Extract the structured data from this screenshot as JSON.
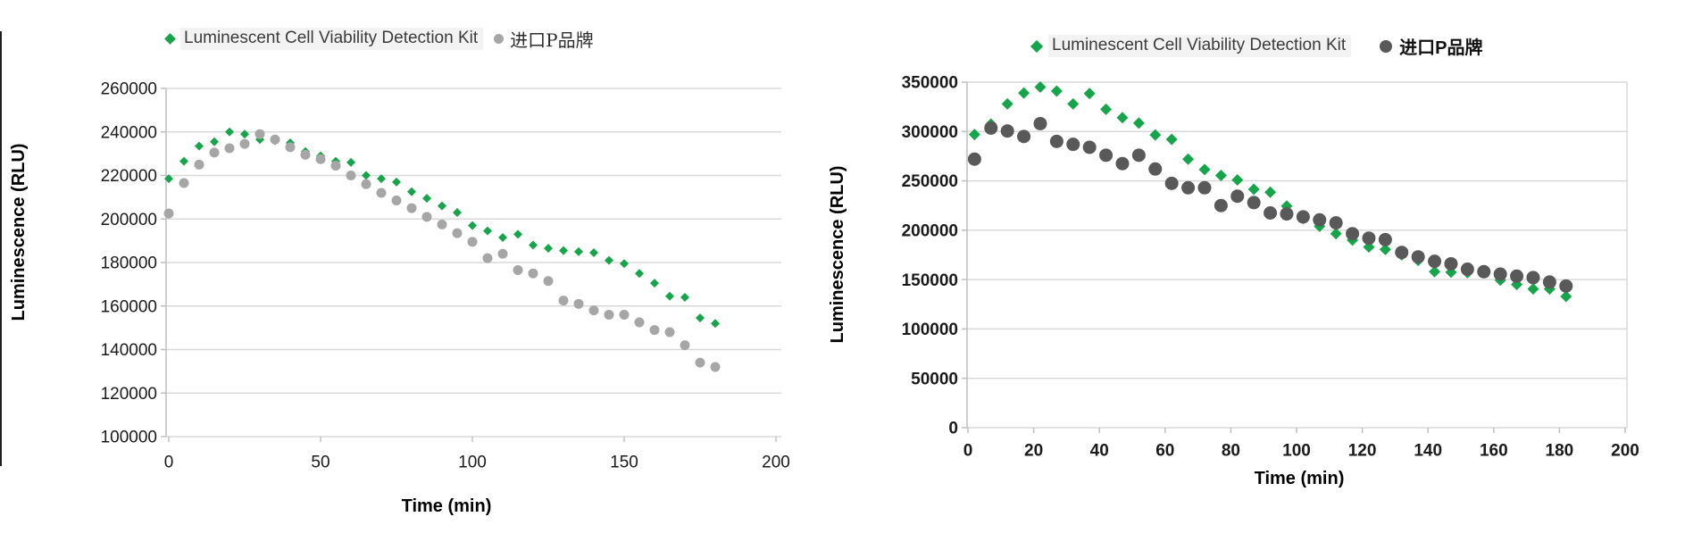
{
  "chart_data": [
    {
      "type": "scatter",
      "title": "",
      "xlabel": "Time (min)",
      "ylabel": "Luminescence (RLU)",
      "xlim": [
        0,
        200
      ],
      "ylim": [
        100000,
        260000
      ],
      "grid": "horizontal",
      "legend_position": "top",
      "x_tick_values": [
        0,
        50,
        100,
        150,
        200
      ],
      "x_tick_labels": [
        "0",
        "50",
        "100",
        "150",
        "200"
      ],
      "y_tick_values": [
        260000,
        240000,
        220000,
        200000,
        180000,
        160000,
        140000,
        120000,
        100000
      ],
      "y_tick_labels": [
        "260000",
        "240000",
        "220000",
        "200000",
        "180000",
        "160000",
        "140000",
        "120000",
        "100000"
      ],
      "x": [
        0,
        5,
        10,
        15,
        20,
        25,
        30,
        35,
        40,
        45,
        50,
        55,
        60,
        65,
        70,
        75,
        80,
        85,
        90,
        95,
        100,
        105,
        110,
        115,
        120,
        125,
        130,
        135,
        140,
        145,
        150,
        155,
        160,
        165,
        170,
        175,
        180
      ],
      "series": [
        {
          "name": "Luminescent Cell Viability Detection Kit",
          "marker": "diamond",
          "color": "#17a54b",
          "values": [
            218500,
            226500,
            233500,
            235500,
            240000,
            239000,
            236500,
            236000,
            235000,
            231000,
            229000,
            226500,
            226000,
            220000,
            218500,
            217000,
            212500,
            209500,
            206000,
            203000,
            197000,
            194500,
            191500,
            193000,
            188000,
            186500,
            185500,
            185000,
            184500,
            181000,
            179500,
            175000,
            170500,
            164500,
            164000,
            154500,
            152000
          ]
        },
        {
          "name": "进口P品牌",
          "marker": "circle",
          "color": "#a6a6a6",
          "values": [
            202500,
            216500,
            225000,
            230500,
            232500,
            234500,
            239000,
            236500,
            233000,
            229500,
            227500,
            224500,
            220000,
            216000,
            212000,
            208500,
            205000,
            201000,
            197500,
            193500,
            189500,
            182000,
            184000,
            176500,
            175000,
            171500,
            162500,
            161000,
            158000,
            156000,
            156000,
            152500,
            149000,
            148000,
            142000,
            134000,
            132000
          ]
        }
      ]
    },
    {
      "type": "scatter",
      "title": "",
      "xlabel": "Time  (min)",
      "ylabel": "Luminescence  (RLU)",
      "xlim": [
        0,
        200
      ],
      "ylim": [
        0,
        350000
      ],
      "grid": "horizontal",
      "legend_position": "top",
      "x_tick_values": [
        0,
        20,
        40,
        60,
        80,
        100,
        120,
        140,
        160,
        180,
        200
      ],
      "x_tick_labels": [
        "0",
        "20",
        "40",
        "60",
        "80",
        "100",
        "120",
        "140",
        "160",
        "180",
        "200"
      ],
      "y_tick_values": [
        350000,
        300000,
        250000,
        200000,
        150000,
        100000,
        50000,
        0
      ],
      "y_tick_labels": [
        "350000",
        "300000",
        "250000",
        "200000",
        "150000",
        "100000",
        "50000",
        "0"
      ],
      "x": [
        2,
        7,
        12,
        17,
        22,
        27,
        32,
        37,
        42,
        47,
        52,
        57,
        62,
        67,
        72,
        77,
        82,
        87,
        92,
        97,
        102,
        107,
        112,
        117,
        122,
        127,
        132,
        137,
        142,
        147,
        152,
        157,
        162,
        167,
        172,
        177,
        182
      ],
      "series": [
        {
          "name": "Luminescent Cell Viability Detection Kit",
          "marker": "diamond",
          "color": "#17a54b",
          "values": [
            297000,
            307500,
            328000,
            339000,
            345000,
            341000,
            328000,
            338500,
            322500,
            314000,
            308500,
            296500,
            292000,
            272000,
            261500,
            255500,
            251000,
            241500,
            238500,
            224500,
            212000,
            204000,
            196500,
            190000,
            183000,
            180500,
            175000,
            169500,
            158000,
            157500,
            157000,
            157000,
            149500,
            145000,
            140500,
            140500,
            133000
          ]
        },
        {
          "name": "进口P品牌",
          "marker": "circle",
          "color": "#595959",
          "values": [
            272000,
            303500,
            300500,
            295000,
            308000,
            290000,
            287000,
            284000,
            276000,
            267500,
            276000,
            262000,
            247500,
            243000,
            243000,
            225000,
            234500,
            228000,
            217500,
            216500,
            213500,
            210500,
            207500,
            196500,
            192000,
            190500,
            177500,
            173000,
            168500,
            166000,
            160500,
            158000,
            155500,
            153500,
            152000,
            147500,
            143500
          ]
        }
      ]
    }
  ]
}
